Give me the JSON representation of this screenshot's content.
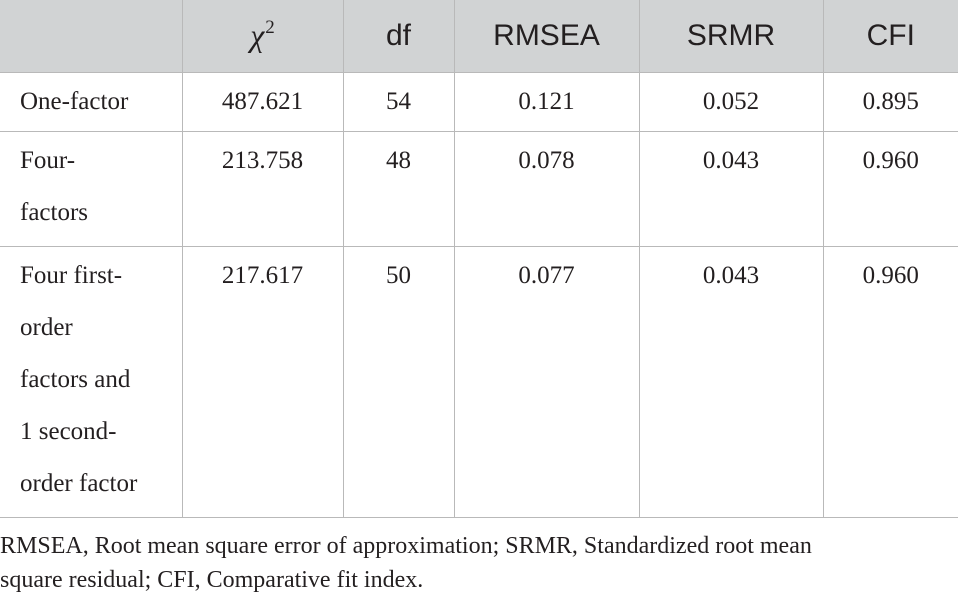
{
  "table": {
    "headers": [
      {
        "symbol": "χ",
        "superscript": "2"
      },
      "df",
      "RMSEA",
      "SRMR",
      "CFI"
    ],
    "rows": [
      {
        "label_lines": [
          "One-factor"
        ],
        "values": [
          "487.621",
          "54",
          "0.121",
          "0.052",
          "0.895"
        ]
      },
      {
        "label_lines": [
          "Four-",
          "factors"
        ],
        "values": [
          "213.758",
          "48",
          "0.078",
          "0.043",
          "0.960"
        ]
      },
      {
        "label_lines": [
          "Four first-",
          "order",
          "factors and",
          "1 second-",
          "order factor"
        ],
        "values": [
          "217.617",
          "50",
          "0.077",
          "0.043",
          "0.960"
        ]
      }
    ]
  },
  "footnote": {
    "line1": "RMSEA, Root mean square error of approximation; SRMR, Standardized root mean",
    "line2": "square residual; CFI, Comparative fit index."
  }
}
